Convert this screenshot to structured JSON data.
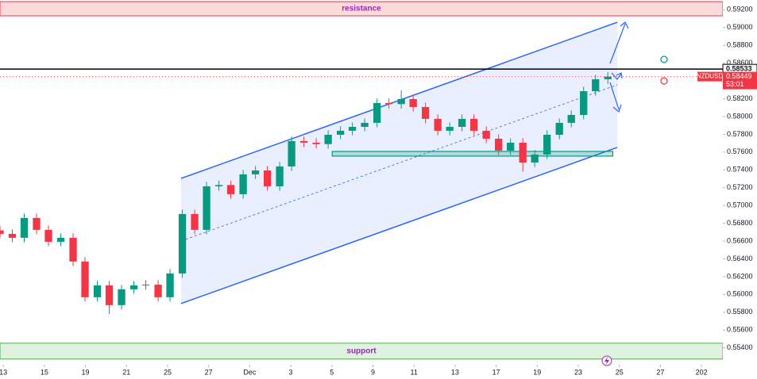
{
  "chart_data": {
    "type": "candlestick",
    "symbol": "NZDUSD",
    "countdown": "53:01",
    "x": [
      -0.08,
      0.22,
      0.51,
      0.81,
      1.1,
      1.4,
      1.7,
      1.99,
      2.29,
      2.58,
      2.88,
      3.18,
      3.47,
      3.77,
      4.06,
      4.36,
      4.66,
      4.95,
      5.25,
      5.54,
      5.84,
      6.14,
      6.43,
      6.73,
      7.02,
      7.32,
      7.62,
      7.91,
      8.21,
      8.5,
      8.8,
      9.1,
      9.39,
      9.69,
      9.98,
      10.28,
      10.58,
      10.87,
      11.17,
      11.46,
      11.76,
      12.06,
      12.35,
      12.65,
      12.94,
      13.24,
      13.54,
      13.83,
      14.13,
      14.42,
      14.72
    ],
    "open": [
      0.5672,
      0.56681,
      0.56637,
      0.5686,
      0.56726,
      0.56592,
      0.56637,
      0.5637,
      0.55969,
      0.56102,
      0.5588,
      0.56058,
      0.56102,
      0.5611,
      0.55969,
      0.56236,
      0.56904,
      0.56726,
      0.57216,
      0.5723,
      0.57127,
      0.5735,
      0.57394,
      0.57216,
      0.57439,
      0.57724,
      0.57706,
      0.5769,
      0.57795,
      0.5784,
      0.57884,
      0.57929,
      0.58152,
      0.5814,
      0.58196,
      0.58107,
      0.57974,
      0.5784,
      0.57884,
      0.57974,
      0.5784,
      0.57751,
      0.57617,
      0.57706,
      0.57483,
      0.57573,
      0.57795,
      0.57929,
      0.58018,
      0.58285,
      0.58419
    ],
    "high": [
      0.5677,
      0.56731,
      0.5691,
      0.5691,
      0.56776,
      0.56687,
      0.56687,
      0.5642,
      0.56152,
      0.56152,
      0.56108,
      0.56152,
      0.5616,
      0.5616,
      0.56286,
      0.56954,
      0.56954,
      0.57266,
      0.5728,
      0.5728,
      0.574,
      0.57444,
      0.57444,
      0.57489,
      0.57774,
      0.57774,
      0.57756,
      0.57845,
      0.5789,
      0.57934,
      0.57979,
      0.58202,
      0.58202,
      0.58296,
      0.58246,
      0.58157,
      0.58024,
      0.57934,
      0.58024,
      0.58024,
      0.5789,
      0.57801,
      0.57756,
      0.57756,
      0.57623,
      0.57845,
      0.57979,
      0.58068,
      0.58335,
      0.58469,
      0.58499
    ],
    "low": [
      0.56631,
      0.56587,
      0.56587,
      0.56676,
      0.56542,
      0.56542,
      0.5632,
      0.55919,
      0.55919,
      0.5578,
      0.5583,
      0.56008,
      0.56052,
      0.55919,
      0.55919,
      0.56186,
      0.56676,
      0.56676,
      0.57166,
      0.57077,
      0.57077,
      0.573,
      0.57166,
      0.57166,
      0.57389,
      0.57656,
      0.5764,
      0.5764,
      0.57745,
      0.5779,
      0.57834,
      0.57879,
      0.5809,
      0.5809,
      0.58057,
      0.57924,
      0.5779,
      0.5779,
      0.57834,
      0.5779,
      0.57701,
      0.57567,
      0.57567,
      0.5738,
      0.57433,
      0.57523,
      0.57745,
      0.57879,
      0.57968,
      0.58235,
      0.58369
    ],
    "close": [
      0.56681,
      0.56637,
      0.5686,
      0.56726,
      0.56592,
      0.56637,
      0.5637,
      0.55969,
      0.56102,
      0.5588,
      0.56058,
      0.56102,
      0.5611,
      0.55969,
      0.56236,
      0.56904,
      0.56726,
      0.57216,
      0.5723,
      0.57127,
      0.5735,
      0.57394,
      0.57216,
      0.57439,
      0.57724,
      0.57706,
      0.5769,
      0.57795,
      0.5784,
      0.57884,
      0.57929,
      0.58152,
      0.5814,
      0.58196,
      0.58107,
      0.57974,
      0.5784,
      0.57884,
      0.57974,
      0.5784,
      0.57751,
      0.57617,
      0.57706,
      0.57483,
      0.57573,
      0.57795,
      0.57929,
      0.58018,
      0.58285,
      0.58419,
      0.58449
    ],
    "up_color": "#089981",
    "down_color": "#f23645",
    "xlim": [
      -0.08,
      17.52
    ],
    "ylim": [
      0.5521,
      0.5931
    ],
    "xticks": [
      {
        "value": 0,
        "label": "13"
      },
      {
        "value": 1,
        "label": "15"
      },
      {
        "value": 2,
        "label": "19"
      },
      {
        "value": 3,
        "label": "21"
      },
      {
        "value": 4,
        "label": "25"
      },
      {
        "value": 5,
        "label": "27"
      },
      {
        "value": 6,
        "label": "Dec"
      },
      {
        "value": 7,
        "label": "3"
      },
      {
        "value": 8,
        "label": "5"
      },
      {
        "value": 9,
        "label": "9"
      },
      {
        "value": 10,
        "label": "11"
      },
      {
        "value": 11,
        "label": "13"
      },
      {
        "value": 12,
        "label": "17"
      },
      {
        "value": 13,
        "label": "19"
      },
      {
        "value": 14,
        "label": "23"
      },
      {
        "value": 15,
        "label": "25"
      },
      {
        "value": 16,
        "label": "27"
      },
      {
        "value": 17,
        "label": "202"
      }
    ],
    "yticks": [
      {
        "value": 0.592,
        "label": "0.59200"
      },
      {
        "value": 0.59,
        "label": "0.59000"
      },
      {
        "value": 0.588,
        "label": "0.58800"
      },
      {
        "value": 0.586,
        "label": "0.58600"
      },
      {
        "value": 0.584,
        "label": "0.58400"
      },
      {
        "value": 0.582,
        "label": "0.58200"
      },
      {
        "value": 0.58,
        "label": "0.58000"
      },
      {
        "value": 0.578,
        "label": "0.57800"
      },
      {
        "value": 0.576,
        "label": "0.57600"
      },
      {
        "value": 0.574,
        "label": "0.57400"
      },
      {
        "value": 0.572,
        "label": "0.57200"
      },
      {
        "value": 0.57,
        "label": "0.57000"
      },
      {
        "value": 0.568,
        "label": "0.56800"
      },
      {
        "value": 0.566,
        "label": "0.56600"
      },
      {
        "value": 0.564,
        "label": "0.56400"
      },
      {
        "value": 0.562,
        "label": "0.56200"
      },
      {
        "value": 0.56,
        "label": "0.56000"
      },
      {
        "value": 0.558,
        "label": "0.55800"
      },
      {
        "value": 0.556,
        "label": "0.55600"
      },
      {
        "value": 0.554,
        "label": "0.55400"
      }
    ],
    "zones": [
      {
        "label": "resistance",
        "range": [
          0.59132,
          0.59292
        ],
        "color": "#f23645"
      },
      {
        "label": "support",
        "range": [
          0.55274,
          0.55452
        ],
        "color": "#4caf50"
      }
    ],
    "level": {
      "value": 0.58533,
      "label": "0.58533",
      "color": "#000000"
    },
    "last_price": {
      "value": 0.58449,
      "label": "0.58449",
      "color": "#f23645"
    },
    "channel": {
      "x": [
        4.33,
        14.95
      ],
      "upper": [
        0.57305,
        0.5906
      ],
      "lower": [
        0.55898,
        0.57653
      ],
      "color": "#2962ff"
    },
    "box": {
      "x": [
        8.01,
        14.84
      ],
      "range": [
        0.57555,
        0.57608
      ],
      "color": "#089981"
    }
  }
}
